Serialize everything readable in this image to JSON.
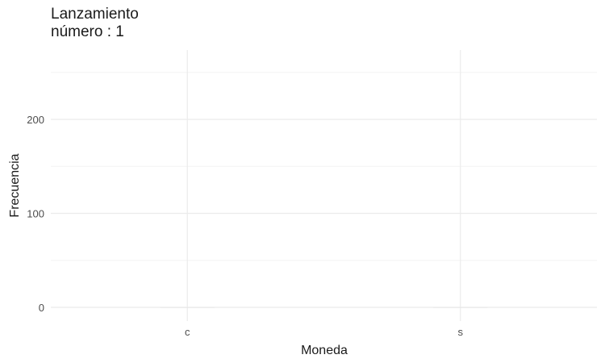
{
  "chart_data": {
    "type": "bar",
    "title": "Lanzamiento\nnúmero : 1",
    "xlabel": "Moneda",
    "ylabel": "Frecuencia",
    "categories": [
      "c",
      "s"
    ],
    "values": [
      0,
      0
    ],
    "ylim": [
      0,
      260
    ],
    "yticks": [
      0,
      100,
      200
    ],
    "ytick_labels": [
      "0",
      "100",
      "200"
    ],
    "grid": true,
    "colors": {
      "grid_major": "#ebebeb",
      "grid_minor": "#f4f4f4",
      "bar": "#e3e3e3"
    }
  }
}
